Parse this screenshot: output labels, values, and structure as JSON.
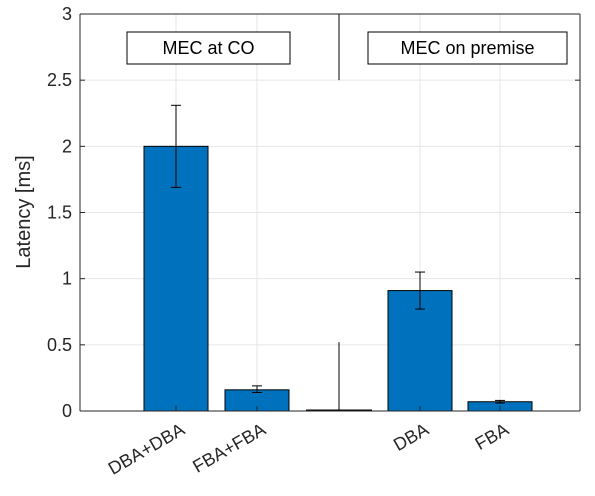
{
  "chart_data": {
    "type": "bar",
    "title": "",
    "xlabel": "",
    "ylabel": "Latency [ms]",
    "ylim": [
      0,
      3
    ],
    "yticks": [
      0,
      0.5,
      1,
      1.5,
      2,
      2.5,
      3
    ],
    "ytick_labels": [
      "0",
      "0.5",
      "1",
      "1.5",
      "2",
      "2.5",
      "3"
    ],
    "grid": true,
    "bar_color": "#0072BD",
    "categories": [
      "DBA+DBA",
      "FBA+FBA",
      "DBA",
      "FBA"
    ],
    "values": [
      2.0,
      0.16,
      0.91,
      0.07
    ],
    "error_low": [
      1.69,
      0.14,
      0.77,
      0.06
    ],
    "error_high": [
      2.31,
      0.19,
      1.05,
      0.08
    ],
    "groups": [
      {
        "label": "MEC at CO",
        "categories": [
          "DBA+DBA",
          "FBA+FBA"
        ]
      },
      {
        "label": "MEC on premise",
        "categories": [
          "DBA",
          "FBA"
        ]
      }
    ]
  }
}
